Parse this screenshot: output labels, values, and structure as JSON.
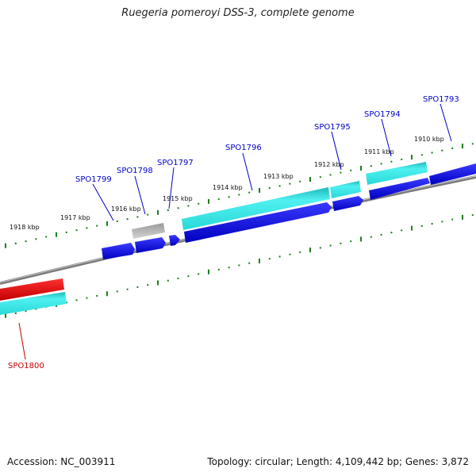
{
  "title": "Ruegeria pomeroyi DSS-3, complete genome",
  "footer": {
    "accession": "Accession: NC_003911",
    "stats": "Topology: circular; Length: 4,109,442 bp; Genes: 3,872"
  },
  "colors": {
    "backbone": "#8a8a8a",
    "ticks": "#1e7d1e",
    "cds_forward": "#0000e0",
    "rna_cyan": "#33e0e0",
    "pseudo_gray": "#b4b4b4",
    "highlight_red": "#e00000",
    "label_blue": "#0000c8",
    "label_red": "#c80000"
  },
  "kbp_labels": [
    "1918 kbp",
    "1917 kbp",
    "1916 kbp",
    "1915 kbp",
    "1914 kbp",
    "1913 kbp",
    "1912 kbp",
    "1911 kbp",
    "1910 kbp"
  ],
  "gene_labels": [
    {
      "name": "SPO1799",
      "color": "label_blue"
    },
    {
      "name": "SPO1798",
      "color": "label_blue"
    },
    {
      "name": "SPO1797",
      "color": "label_blue"
    },
    {
      "name": "SPO1796",
      "color": "label_blue"
    },
    {
      "name": "SPO1795",
      "color": "label_blue"
    },
    {
      "name": "SPO1794",
      "color": "label_blue"
    },
    {
      "name": "SPO1793",
      "color": "label_blue"
    },
    {
      "name": "SPO1800",
      "color": "label_red"
    }
  ]
}
